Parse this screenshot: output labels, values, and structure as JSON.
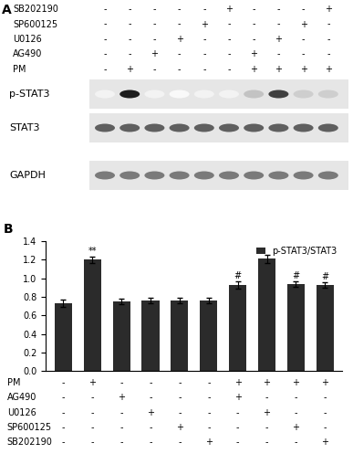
{
  "blot": {
    "panel_label": "A",
    "treatments": [
      {
        "name": "SB202190",
        "signs": [
          "-",
          "-",
          "-",
          "-",
          "-",
          "+",
          "-",
          "-",
          "-",
          "+"
        ]
      },
      {
        "name": "SP600125",
        "signs": [
          "-",
          "-",
          "-",
          "-",
          "+",
          "-",
          "-",
          "-",
          "+",
          "-"
        ]
      },
      {
        "name": "U0126",
        "signs": [
          "-",
          "-",
          "-",
          "+",
          "-",
          "-",
          "-",
          "+",
          "-",
          "-"
        ]
      },
      {
        "name": "AG490",
        "signs": [
          "-",
          "-",
          "+",
          "-",
          "-",
          "-",
          "+",
          "-",
          "-",
          "-"
        ]
      },
      {
        "name": "PM",
        "signs": [
          "-",
          "+",
          "-",
          "-",
          "-",
          "-",
          "+",
          "+",
          "+",
          "+"
        ]
      }
    ],
    "bands": [
      {
        "name": "p-STAT3",
        "intensity": [
          0.1,
          0.9,
          0.1,
          0.05,
          0.1,
          0.1,
          0.35,
          0.8,
          0.3,
          0.3
        ]
      },
      {
        "name": "STAT3",
        "intensity": [
          0.7,
          0.7,
          0.7,
          0.7,
          0.7,
          0.7,
          0.7,
          0.7,
          0.7,
          0.7
        ]
      },
      {
        "name": "GAPDH",
        "intensity": [
          0.6,
          0.6,
          0.6,
          0.6,
          0.6,
          0.6,
          0.6,
          0.6,
          0.6,
          0.6
        ]
      }
    ]
  },
  "chart_data": {
    "type": "bar",
    "panel_label": "B",
    "categories": [
      null,
      null,
      null,
      null,
      null,
      null,
      null,
      null,
      null,
      null
    ],
    "series": [
      {
        "name": "p-STAT3/STAT3",
        "color": "#2b2b2b",
        "values": [
          0.73,
          1.2,
          0.75,
          0.76,
          0.76,
          0.76,
          0.93,
          1.21,
          0.94,
          0.93
        ],
        "errors": [
          0.04,
          0.03,
          0.03,
          0.03,
          0.03,
          0.03,
          0.04,
          0.04,
          0.03,
          0.03
        ]
      }
    ],
    "annotations": [
      {
        "index": 1,
        "text": "**"
      },
      {
        "index": 6,
        "text": "#"
      },
      {
        "index": 8,
        "text": "#"
      },
      {
        "index": 9,
        "text": "#"
      }
    ],
    "treatments": [
      {
        "name": "PM",
        "signs": [
          "-",
          "+",
          "-",
          "-",
          "-",
          "-",
          "+",
          "+",
          "+",
          "+"
        ]
      },
      {
        "name": "AG490",
        "signs": [
          "-",
          "-",
          "+",
          "-",
          "-",
          "-",
          "+",
          "-",
          "-",
          "-"
        ]
      },
      {
        "name": "U0126",
        "signs": [
          "-",
          "-",
          "-",
          "+",
          "-",
          "-",
          "-",
          "+",
          "-",
          "-"
        ]
      },
      {
        "name": "SP600125",
        "signs": [
          "-",
          "-",
          "-",
          "-",
          "+",
          "-",
          "-",
          "-",
          "+",
          "-"
        ]
      },
      {
        "name": "SB202190",
        "signs": [
          "-",
          "-",
          "-",
          "-",
          "-",
          "+",
          "-",
          "-",
          "-",
          "+"
        ]
      }
    ],
    "ylim": [
      0,
      1.4
    ],
    "yticks": [
      0.0,
      0.2,
      0.4,
      0.6,
      0.8,
      1.0,
      1.2,
      1.4
    ],
    "legend": "upper right",
    "grid": false
  }
}
